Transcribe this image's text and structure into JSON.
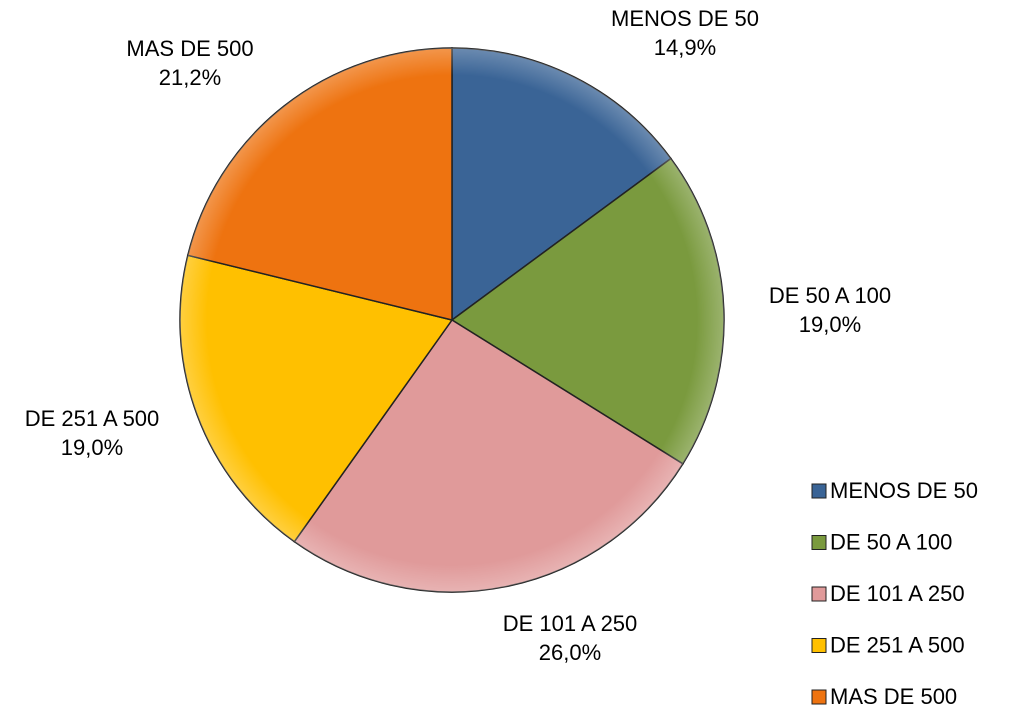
{
  "chart_data": {
    "type": "pie",
    "categories": [
      "MENOS DE 50",
      "DE 50 A 100",
      "DE 101 A 250",
      "DE 251 A 500",
      "MAS DE 500"
    ],
    "values": [
      14.9,
      19.0,
      26.0,
      19.0,
      21.2
    ],
    "value_labels": [
      "14,9%",
      "19,0%",
      "26,0%",
      "19,0%",
      "21,2%"
    ],
    "colors": [
      "#3a6496",
      "#7a9a3e",
      "#e09a9a",
      "#ffc000",
      "#ee7310"
    ],
    "legend_position": "lower right"
  }
}
